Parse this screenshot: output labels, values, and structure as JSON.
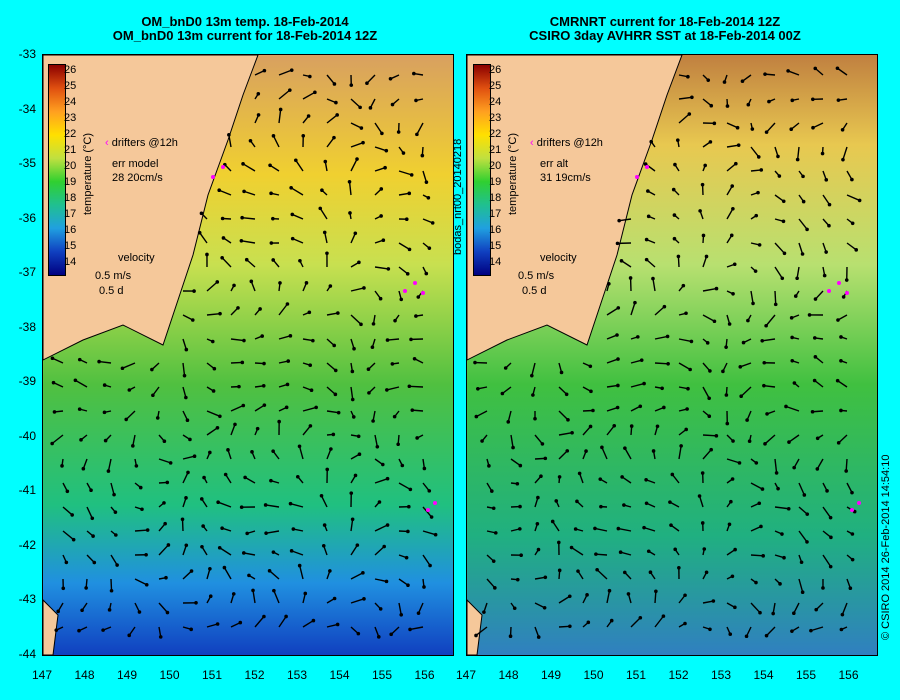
{
  "left": {
    "title1": "OM_bnD0 13m temp. 18-Feb-2014",
    "title2": "OM_bnD0 13m current for 18-Feb-2014 12Z",
    "err_label": "err model",
    "err_values": "28 20cm/s"
  },
  "right": {
    "title1": "CMRNRT current for 18-Feb-2014 12Z",
    "title2": "CSIRO 3day AVHRR SST at 18-Feb-2014 00Z",
    "err_label": "err alt",
    "err_values": "31 19cm/s"
  },
  "legend": {
    "drifters": "drifters @12h",
    "velocity": "velocity",
    "scale": "0.5 m/s",
    "duration": "0.5 d",
    "cbar_title": "temperature (°C)",
    "cbar_ticks": [
      "26",
      "25",
      "24",
      "23",
      "22",
      "21",
      "20",
      "19",
      "18",
      "17",
      "16",
      "15",
      "14"
    ]
  },
  "axes": {
    "lat": [
      "-33",
      "-34",
      "-35",
      "-36",
      "-37",
      "-38",
      "-39",
      "-40",
      "-41",
      "-42",
      "-43",
      "-44"
    ],
    "lon": [
      "147",
      "148",
      "149",
      "150",
      "151",
      "152",
      "153",
      "154",
      "155",
      "156"
    ]
  },
  "side_label": "bodas_nrt00_20140218",
  "credit": "© CSIRO 2014   26-Feb-2014 14:54:10",
  "colors": {
    "background": "#00ffff",
    "land": "#f5c89a",
    "drifter": "#ff00ff"
  }
}
